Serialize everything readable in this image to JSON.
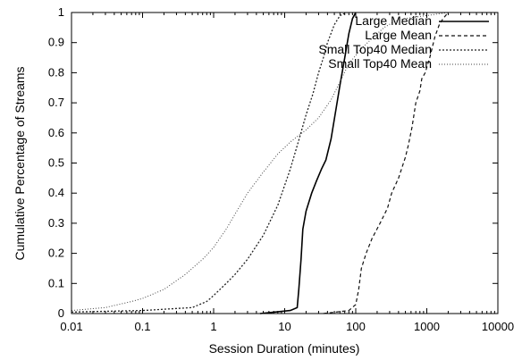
{
  "chart_data": {
    "type": "line",
    "title": "",
    "xlabel": "Session Duration (minutes)",
    "ylabel": "Cumulative Percentage of Streams",
    "x_scale": "log",
    "xlim": [
      0.01,
      10000
    ],
    "ylim": [
      0,
      1
    ],
    "x_ticks": [
      "0.01",
      "0.1",
      "1",
      "10",
      "100",
      "1000",
      "10000"
    ],
    "y_ticks": [
      "0",
      "0.1",
      "0.2",
      "0.3",
      "0.4",
      "0.5",
      "0.6",
      "0.7",
      "0.8",
      "0.9",
      "1"
    ],
    "grid": false,
    "legend_position": "top-right",
    "series": [
      {
        "name": "Large Median",
        "dash": "solid",
        "points": [
          [
            4.5,
            0.0
          ],
          [
            12,
            0.01
          ],
          [
            15,
            0.02
          ],
          [
            15.8,
            0.08
          ],
          [
            17,
            0.18
          ],
          [
            18,
            0.28
          ],
          [
            20,
            0.34
          ],
          [
            24,
            0.4
          ],
          [
            28,
            0.44
          ],
          [
            33,
            0.48
          ],
          [
            38,
            0.51
          ],
          [
            45,
            0.58
          ],
          [
            52,
            0.67
          ],
          [
            60,
            0.76
          ],
          [
            70,
            0.85
          ],
          [
            80,
            0.93
          ],
          [
            90,
            0.98
          ],
          [
            100,
            1.0
          ]
        ]
      },
      {
        "name": "Large Mean",
        "dash": "dashed",
        "points": [
          [
            35,
            0.0
          ],
          [
            80,
            0.01
          ],
          [
            100,
            0.03
          ],
          [
            110,
            0.08
          ],
          [
            120,
            0.15
          ],
          [
            140,
            0.2
          ],
          [
            170,
            0.25
          ],
          [
            220,
            0.3
          ],
          [
            280,
            0.35
          ],
          [
            320,
            0.4
          ],
          [
            400,
            0.45
          ],
          [
            500,
            0.52
          ],
          [
            550,
            0.56
          ],
          [
            620,
            0.62
          ],
          [
            700,
            0.7
          ],
          [
            800,
            0.74
          ],
          [
            850,
            0.78
          ],
          [
            950,
            0.8
          ],
          [
            1100,
            0.85
          ],
          [
            1300,
            0.92
          ],
          [
            1500,
            0.96
          ],
          [
            1700,
            0.98
          ],
          [
            2000,
            1.0
          ]
        ]
      },
      {
        "name": "Small Top40 Median",
        "dash": "dotted-dashed",
        "points": [
          [
            0.01,
            0.005
          ],
          [
            0.1,
            0.01
          ],
          [
            0.5,
            0.02
          ],
          [
            0.8,
            0.04
          ],
          [
            1.0,
            0.06
          ],
          [
            1.5,
            0.1
          ],
          [
            2.0,
            0.13
          ],
          [
            3,
            0.18
          ],
          [
            5,
            0.26
          ],
          [
            8,
            0.36
          ],
          [
            12,
            0.48
          ],
          [
            16,
            0.58
          ],
          [
            20,
            0.66
          ],
          [
            25,
            0.73
          ],
          [
            30,
            0.8
          ],
          [
            35,
            0.85
          ],
          [
            40,
            0.9
          ],
          [
            50,
            0.96
          ],
          [
            60,
            0.99
          ],
          [
            75,
            1.0
          ]
        ]
      },
      {
        "name": "Small Top40 Mean",
        "dash": "dotted",
        "points": [
          [
            0.01,
            0.01
          ],
          [
            0.03,
            0.02
          ],
          [
            0.07,
            0.04
          ],
          [
            0.1,
            0.05
          ],
          [
            0.2,
            0.08
          ],
          [
            0.4,
            0.13
          ],
          [
            0.7,
            0.18
          ],
          [
            1.0,
            0.22
          ],
          [
            1.5,
            0.28
          ],
          [
            2.0,
            0.33
          ],
          [
            3,
            0.4
          ],
          [
            5,
            0.47
          ],
          [
            8,
            0.53
          ],
          [
            12,
            0.57
          ],
          [
            20,
            0.61
          ],
          [
            30,
            0.65
          ],
          [
            45,
            0.71
          ],
          [
            60,
            0.77
          ],
          [
            80,
            0.83
          ],
          [
            120,
            0.88
          ],
          [
            180,
            0.92
          ],
          [
            250,
            0.95
          ],
          [
            350,
            0.97
          ],
          [
            500,
            0.98
          ],
          [
            1000,
            0.99
          ],
          [
            2000,
            1.0
          ],
          [
            2400,
            1.0
          ]
        ]
      }
    ]
  }
}
